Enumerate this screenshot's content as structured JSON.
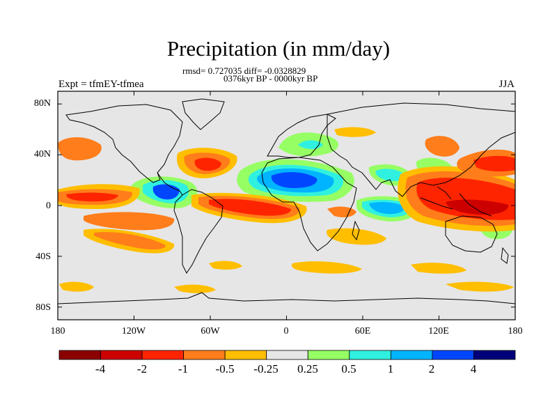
{
  "title": "Precipitation (in mm/day)",
  "stats_line": "rmsd= 0.727035 diff= -0.0328829",
  "period_line": "0376kyr BP - 0000kyr BP",
  "experiment_label": "Expt = tfmEY-tfmea",
  "season_label": "JJA",
  "lat_ticks": [
    "80N",
    "40N",
    "0",
    "40S",
    "80S"
  ],
  "lon_ticks": [
    "180",
    "120W",
    "60W",
    "0",
    "60E",
    "120E",
    "180"
  ],
  "colorbar": {
    "labels": [
      "-4",
      "-2",
      "-1",
      "-0.5",
      "-0.25",
      "0.25",
      "0.5",
      "1",
      "2",
      "4"
    ],
    "colors": [
      "#8b0000",
      "#cd0000",
      "#ff2400",
      "#ff7d1a",
      "#ffbe00",
      "#e6e6e6",
      "#96ff64",
      "#30f0e0",
      "#00b4ff",
      "#0046ff",
      "#00007a"
    ]
  },
  "colors": {
    "background_field": "#e6e6e6",
    "coastline": "#000000"
  }
}
